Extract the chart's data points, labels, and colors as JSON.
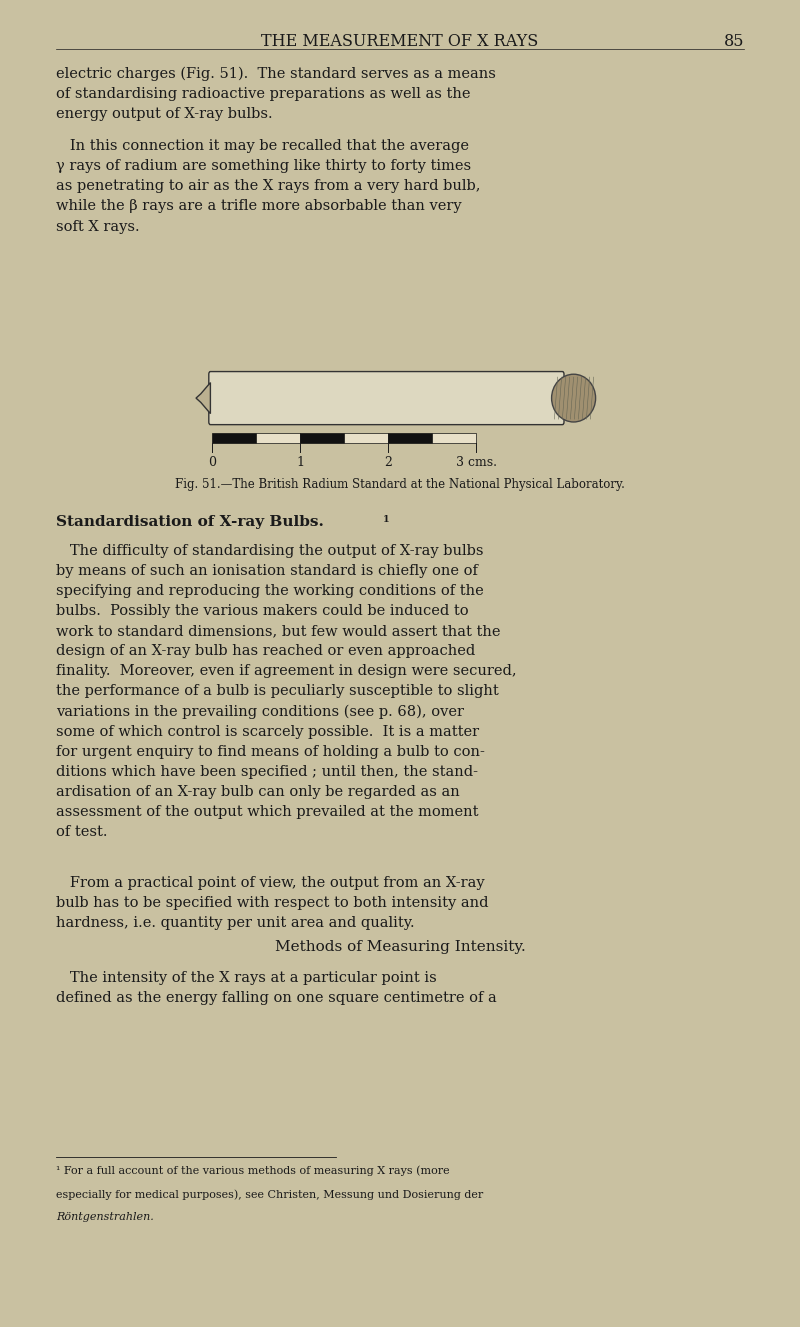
{
  "bg_color": "#c9c1a1",
  "text_color": "#1a1a1a",
  "page_width": 8.0,
  "page_height": 13.27,
  "header_text": "THE MEASUREMENT OF X RAYS",
  "page_number": "85",
  "paragraph1": "electric charges (Fig. 51).  The standard serves as a means\nof standardising radioactive preparations as well as the\nenergy output of X-ray bulbs.",
  "paragraph2": "   In this connection it may be recalled that the average\nγ rays of radium are something like thirty to forty times\nas penetrating to air as the X rays from a very hard bulb,\nwhile the β rays are a trifle more absorbable than very\nsoft X rays.",
  "fig_caption": "Fig. 51.—The British Radium Standard at the National Physical Laboratory.",
  "section_heading": "Standardisation of X-ray Bulbs.",
  "section_heading_sup": "1",
  "paragraph3": "   The difficulty of standardising the output of X-ray bulbs\nby means of such an ionisation standard is chiefly one of\nspecifying and reproducing the working conditions of the\nbulbs.  Possibly the various makers could be induced to\nwork to standard dimensions, but few would assert that the\ndesign of an X-ray bulb has reached or even approached\nfinality.  Moreover, even if agreement in design were secured,\nthe performance of a bulb is peculiarly susceptible to slight\nvariations in the prevailing conditions (see p. 68), over\nsome of which control is scarcely possible.  It is a matter\nfor urgent enquiry to find means of holding a bulb to con-\nditions which have been specified ; until then, the stand-\nardisation of an X-ray bulb can only be regarded as an\nassessment of the output which prevailed at the moment\nof test.",
  "paragraph4": "   From a practical point of view, the output from an X-ray\nbulb has to be specified with respect to both intensity and\nhardness, i.e. quantity per unit area and quality.",
  "methods_heading": "Methods of Measuring Intensity.",
  "paragraph5": "   The intensity of the X rays at a particular point is\ndefined as the energy falling on one square centimetre of a",
  "fn_line1": "¹ For a full account of the various methods of measuring X rays (more",
  "fn_line2": "especially for medical purposes), see Christen, Messung und Dosierung der",
  "fn_line3": "Röntgenstrahlen.",
  "scale_labels": [
    "0",
    "1",
    "2",
    "3 cms."
  ]
}
